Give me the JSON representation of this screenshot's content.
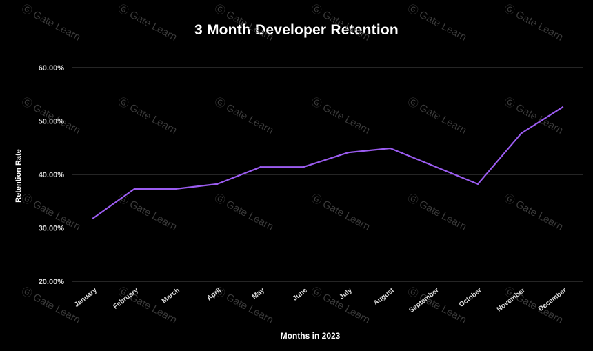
{
  "watermark": {
    "text": "Gate Learn"
  },
  "colors": {
    "background": "#000000",
    "line": "#9b5cf0",
    "grid": "#4a4a4a",
    "text": "#ffffff",
    "tick_text": "#d9d9d9"
  },
  "chart_data": {
    "type": "line",
    "title": "3 Month Developer Retention",
    "xlabel": "Months in 2023",
    "ylabel": "Retention Rate",
    "categories": [
      "January",
      "February",
      "March",
      "April",
      "May",
      "June",
      "July",
      "August",
      "September",
      "October",
      "November",
      "December"
    ],
    "series": [
      {
        "values": [
          31.8,
          37.3,
          37.3,
          38.2,
          41.4,
          41.4,
          44.1,
          44.9,
          null,
          38.2,
          47.7,
          52.6
        ],
        "path_x": [
          "January",
          "February",
          "March",
          "April",
          "May",
          "June",
          "July",
          "August",
          "September",
          "October",
          "November",
          "December"
        ]
      }
    ],
    "y_ticks": [
      "20.00%",
      "30.00%",
      "40.00%",
      "50.00%",
      "60.00%"
    ],
    "y_tick_values": [
      20,
      30,
      40,
      50,
      60
    ],
    "ylim": [
      20,
      60
    ],
    "grid": "horizontal",
    "legend": "none"
  }
}
